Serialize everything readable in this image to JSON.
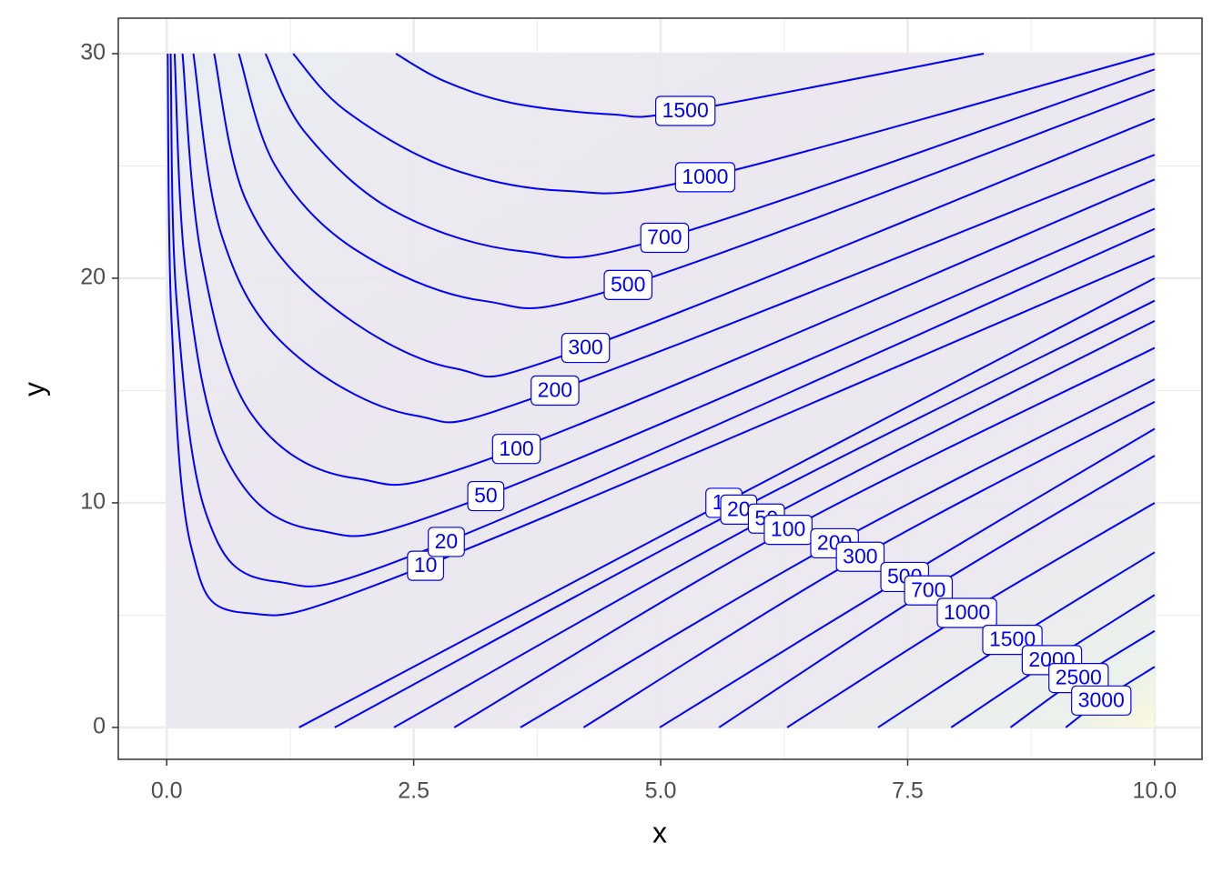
{
  "chart_data": {
    "type": "contour",
    "xlabel": "x",
    "ylabel": "y",
    "color": "#0000ff",
    "grid": true,
    "xlim": [
      -0.49,
      10.48
    ],
    "ylim": [
      -1.42,
      31.58
    ],
    "xticks": [
      {
        "value": 0,
        "label": "0.0"
      },
      {
        "value": 2.5,
        "label": "2.5"
      },
      {
        "value": 5,
        "label": "5.0"
      },
      {
        "value": 7.5,
        "label": "7.5"
      },
      {
        "value": 10,
        "label": "10.0"
      }
    ],
    "yticks": [
      0,
      10,
      20,
      30
    ],
    "contours": [
      {
        "level": 10,
        "x": [
          0.01,
          0.05,
          0.25,
          0.8,
          2.62,
          10
        ],
        "y": [
          30,
          18,
          8,
          5.1,
          7.2,
          21
        ]
      },
      {
        "level": 20,
        "x": [
          0.04,
          0.1,
          0.4,
          1.1,
          2.83,
          10
        ],
        "y": [
          30,
          19,
          9.5,
          6.5,
          8.26,
          22.2
        ]
      },
      {
        "level": 50,
        "x": [
          0.08,
          0.2,
          0.6,
          1.5,
          3.23,
          10
        ],
        "y": [
          30,
          20,
          12,
          8.8,
          10.3,
          23.1
        ]
      },
      {
        "level": 100,
        "x": [
          0.16,
          0.35,
          0.85,
          1.9,
          3.54,
          10
        ],
        "y": [
          30,
          21,
          14,
          11.1,
          12.4,
          24.4
        ]
      },
      {
        "level": 200,
        "x": [
          0.27,
          0.55,
          1.2,
          2.5,
          3.93,
          10
        ],
        "y": [
          30,
          22,
          17,
          13.9,
          15.0,
          25.5
        ]
      },
      {
        "level": 300,
        "x": [
          0.48,
          0.8,
          1.6,
          2.9,
          4.24,
          10
        ],
        "y": [
          30,
          23.5,
          19,
          16.0,
          16.9,
          27.1
        ]
      },
      {
        "level": 500,
        "x": [
          0.73,
          1.1,
          1.9,
          3.2,
          4.67,
          10
        ],
        "y": [
          30,
          25,
          21.3,
          19.0,
          19.7,
          28.4
        ]
      },
      {
        "level": 700,
        "x": [
          1.0,
          1.4,
          2.3,
          3.6,
          5.04,
          10
        ],
        "y": [
          30,
          26.5,
          23,
          21.2,
          21.8,
          29.3
        ]
      },
      {
        "level": 1000,
        "x": [
          1.28,
          1.8,
          2.8,
          4.0,
          5.45,
          10
        ],
        "y": [
          30,
          27.5,
          25,
          23.9,
          24.5,
          30
        ]
      },
      {
        "level": 1500,
        "x": [
          2.32,
          2.8,
          3.5,
          4.5,
          5.25,
          8.27
        ],
        "y": [
          30,
          28.8,
          27.8,
          27.3,
          27.45,
          30
        ]
      },
      {
        "level": 10,
        "x": [
          1.34,
          5.64,
          10
        ],
        "y": [
          0,
          10.0,
          20.0
        ]
      },
      {
        "level": 20,
        "x": [
          1.7,
          5.79,
          10
        ],
        "y": [
          0,
          9.7,
          19.0
        ]
      },
      {
        "level": 50,
        "x": [
          2.3,
          6.07,
          10
        ],
        "y": [
          0,
          9.3,
          18.1
        ]
      },
      {
        "level": 100,
        "x": [
          2.91,
          6.29,
          10
        ],
        "y": [
          0,
          8.8,
          16.9
        ]
      },
      {
        "level": 200,
        "x": [
          3.58,
          6.76,
          10
        ],
        "y": [
          0,
          8.2,
          15.5
        ]
      },
      {
        "level": 300,
        "x": [
          4.22,
          7.02,
          10
        ],
        "y": [
          0,
          7.6,
          14.5
        ]
      },
      {
        "level": 500,
        "x": [
          4.99,
          7.47,
          10
        ],
        "y": [
          0,
          6.7,
          13.3
        ]
      },
      {
        "level": 700,
        "x": [
          5.59,
          7.71,
          10
        ],
        "y": [
          0,
          6.1,
          12.1
        ]
      },
      {
        "level": 1000,
        "x": [
          6.28,
          8.1,
          10
        ],
        "y": [
          0,
          5.1,
          10.0
        ]
      },
      {
        "level": 1500,
        "x": [
          7.2,
          8.56,
          10
        ],
        "y": [
          0,
          3.9,
          7.8
        ]
      },
      {
        "level": 2000,
        "x": [
          7.94,
          8.96,
          10
        ],
        "y": [
          0,
          3.0,
          5.9
        ]
      },
      {
        "level": 2500,
        "x": [
          8.54,
          9.23,
          10
        ],
        "y": [
          0,
          2.2,
          4.3
        ]
      },
      {
        "level": 3000,
        "x": [
          9.1,
          9.46,
          10
        ],
        "y": [
          0,
          1.2,
          2.7
        ]
      }
    ]
  }
}
